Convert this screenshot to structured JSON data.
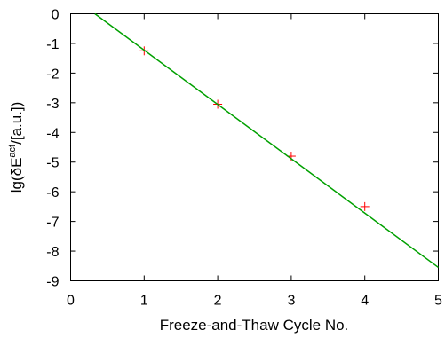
{
  "chart_data": {
    "type": "scatter",
    "xlabel": "Freeze-and-Thaw Cycle No.",
    "ylabel": {
      "prefix": "lg(δE",
      "superscript": "act",
      "suffix": "/[a.u.])"
    },
    "xlim": [
      0,
      5
    ],
    "ylim": [
      -9,
      0
    ],
    "x_ticks": [
      "0",
      "1",
      "2",
      "3",
      "4",
      "5"
    ],
    "y_ticks": [
      "0",
      "-1",
      "-2",
      "-3",
      "-4",
      "-5",
      "-6",
      "-7",
      "-8",
      "-9"
    ],
    "grid": false,
    "series": [
      {
        "kind": "points",
        "marker": "plus",
        "color": "#ff0000",
        "x": [
          1,
          2,
          3,
          4
        ],
        "y": [
          -1.25,
          -3.05,
          -4.8,
          -6.5
        ]
      },
      {
        "kind": "line",
        "color": "#00a000",
        "x": [
          0.33,
          5
        ],
        "y": [
          0,
          -8.55
        ]
      }
    ]
  }
}
